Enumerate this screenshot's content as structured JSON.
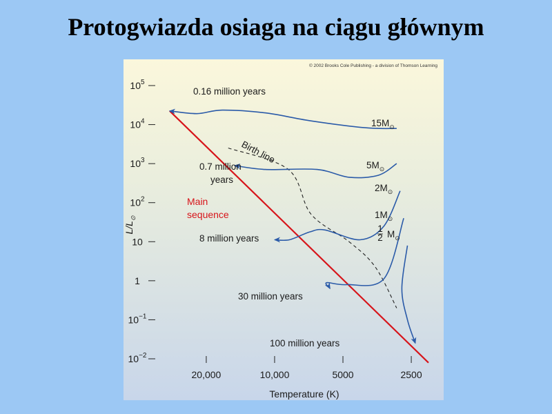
{
  "slide": {
    "title": "Protogwiazda osiaga na ciągu głównym"
  },
  "chart_data": {
    "type": "line",
    "copyright": "© 2002 Brooks Cole Publishing - a division of Thomson Learning",
    "xlabel": "Temperature (K)",
    "ylabel_main": "L/L",
    "ylabel_sub": "⊙",
    "x_scale": "log",
    "x_reversed": true,
    "x_range": [
      30000,
      1800
    ],
    "y_scale": "log",
    "y_range_exp": [
      -2,
      5
    ],
    "x_ticks": [
      {
        "value": 20000,
        "label": "20,000"
      },
      {
        "value": 10000,
        "label": "10,000"
      },
      {
        "value": 5000,
        "label": "5000"
      },
      {
        "value": 2500,
        "label": "2500"
      }
    ],
    "y_ticks": [
      {
        "exp": 5,
        "base": "10",
        "sup": "5"
      },
      {
        "exp": 4,
        "base": "10",
        "sup": "4"
      },
      {
        "exp": 3,
        "base": "10",
        "sup": "3"
      },
      {
        "exp": 2,
        "base": "10",
        "sup": "2"
      },
      {
        "exp": 1,
        "base": "10",
        "sup": ""
      },
      {
        "exp": 0,
        "base": "1",
        "sup": ""
      },
      {
        "exp": -1,
        "base": "10",
        "sup": "−1"
      },
      {
        "exp": -2,
        "base": "10",
        "sup": "−2"
      }
    ],
    "main_sequence": {
      "labels": [
        "Main",
        "sequence"
      ],
      "color": "#d7141a",
      "points": [
        [
          29000,
          4.35
        ],
        [
          2100,
          -2.1
        ]
      ]
    },
    "birth_line": {
      "label": "Birth line",
      "style": "dashed",
      "points": [
        [
          16000,
          3.4
        ],
        [
          8700,
          2.85
        ],
        [
          6900,
          1.7
        ],
        [
          4700,
          1.0
        ],
        [
          3600,
          0.35
        ],
        [
          2900,
          -0.7
        ]
      ]
    },
    "tracks": [
      {
        "mass": "15M",
        "mass_sub": "⊙",
        "time_label": "0.16 million years",
        "color": "#2a5aa8",
        "points": [
          [
            2900,
            3.9
          ],
          [
            4000,
            3.92
          ],
          [
            7000,
            4.1
          ],
          [
            11000,
            4.3
          ],
          [
            17000,
            4.37
          ],
          [
            22000,
            4.28
          ],
          [
            29000,
            4.35
          ]
        ]
      },
      {
        "mass": "5M",
        "mass_sub": "⊙",
        "time_label": "0.7 million years",
        "time_label_lines": [
          "0.7 million",
          "years"
        ],
        "color": "#2a5aa8",
        "points": [
          [
            2900,
            3.0
          ],
          [
            3500,
            2.7
          ],
          [
            4700,
            2.65
          ],
          [
            6500,
            2.85
          ],
          [
            11000,
            2.85
          ],
          [
            15000,
            2.95
          ]
        ]
      },
      {
        "mass": "2M",
        "mass_sub": "⊙",
        "time_label": "8 million years",
        "color": "#2a5aa8",
        "points": [
          [
            2800,
            2.3
          ],
          [
            3300,
            1.4
          ],
          [
            4200,
            1.05
          ],
          [
            6000,
            1.3
          ],
          [
            7000,
            1.25
          ],
          [
            8600,
            1.05
          ],
          [
            10000,
            1.05
          ]
        ]
      },
      {
        "mass": "1M",
        "mass_sub": "⊙",
        "time_label": "30 million years",
        "color": "#2a5aa8",
        "points": [
          [
            2700,
            1.6
          ],
          [
            3300,
            0.05
          ],
          [
            4800,
            -0.1
          ],
          [
            5900,
            -0.05
          ],
          [
            5700,
            -0.2
          ]
        ]
      },
      {
        "mass_num": "1",
        "mass_den": "2",
        "mass": "M",
        "mass_sub": "⊙",
        "time_label": "100 million years",
        "color": "#2a5aa8",
        "points": [
          [
            2600,
            0.9
          ],
          [
            2750,
            -0.2
          ],
          [
            2600,
            -1.0
          ],
          [
            2400,
            -1.6
          ]
        ]
      }
    ]
  }
}
